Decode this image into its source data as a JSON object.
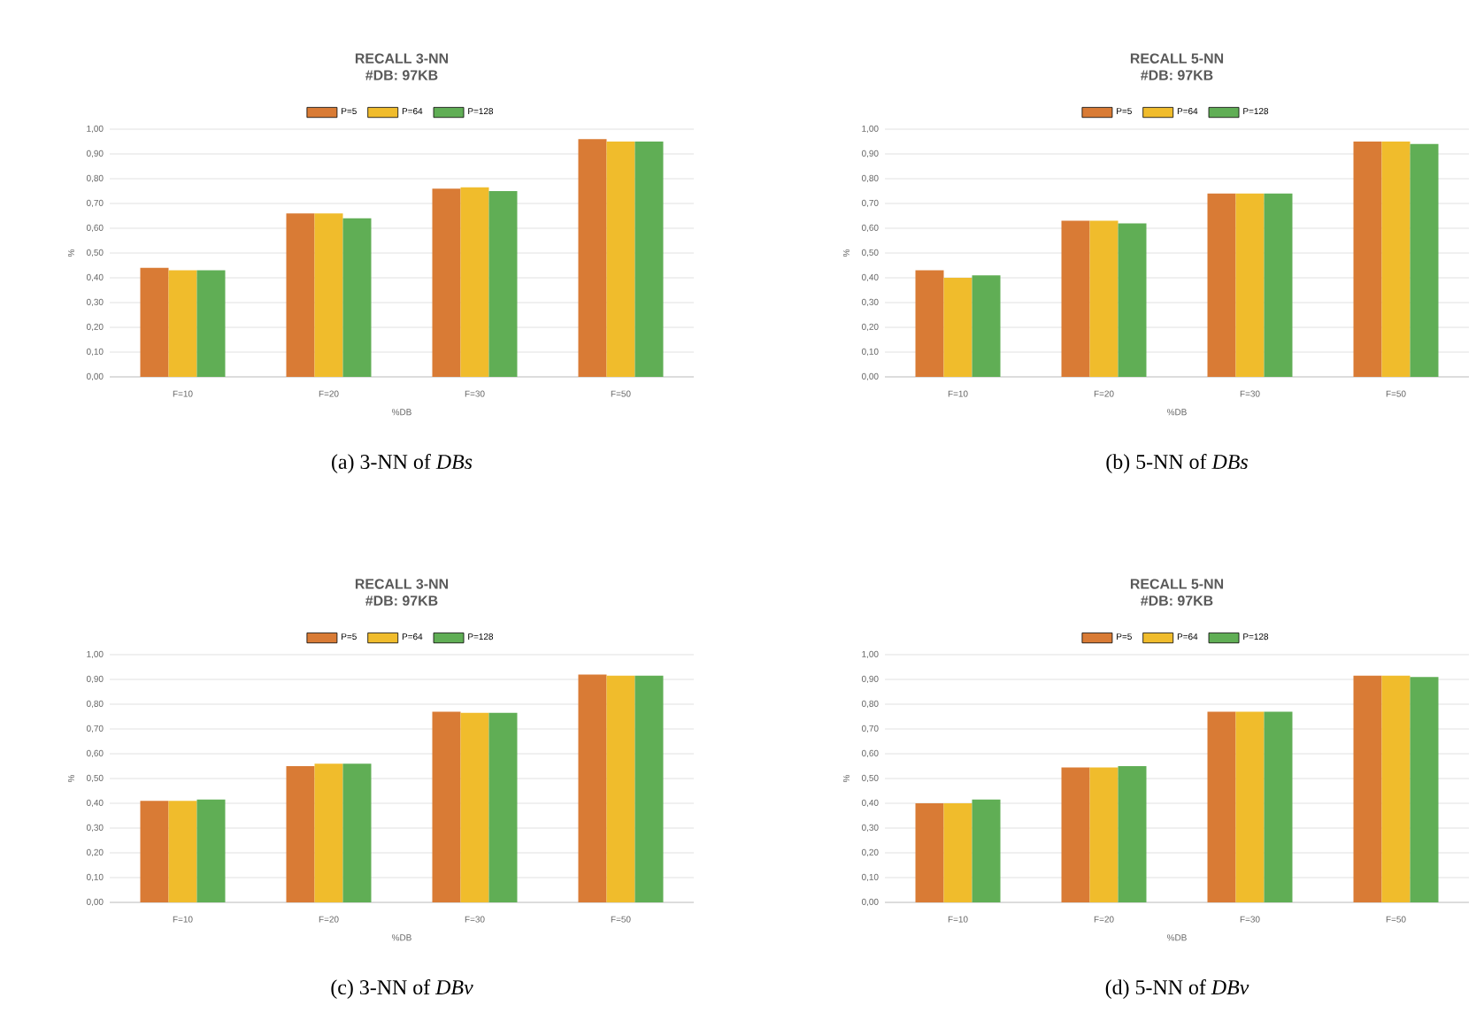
{
  "chart_data": [
    {
      "type": "bar",
      "title": "RECALL 3-NN",
      "subtitle": "#DB: 97KB",
      "xlabel": "%DB",
      "ylabel": "%",
      "categories": [
        "F=10",
        "F=20",
        "F=30",
        "F=50"
      ],
      "series": [
        {
          "name": "P=5",
          "color": "#d97b35",
          "values": [
            0.44,
            0.66,
            0.76,
            0.96
          ]
        },
        {
          "name": "P=64",
          "color": "#f0bc2c",
          "values": [
            0.43,
            0.66,
            0.765,
            0.95
          ]
        },
        {
          "name": "P=128",
          "color": "#60ae55",
          "values": [
            0.43,
            0.64,
            0.75,
            0.95
          ]
        }
      ],
      "ylim": [
        0,
        1
      ],
      "yticks": [
        {
          "value": 0,
          "label": "0,00"
        },
        {
          "value": 0.1,
          "label": "0,10"
        },
        {
          "value": 0.2,
          "label": "0,20"
        },
        {
          "value": 0.3,
          "label": "0,30"
        },
        {
          "value": 0.4,
          "label": "0,40"
        },
        {
          "value": 0.5,
          "label": "0,50"
        },
        {
          "value": 0.6,
          "label": "0,60"
        },
        {
          "value": 0.7,
          "label": "0,70"
        },
        {
          "value": 0.8,
          "label": "0,80"
        },
        {
          "value": 0.9,
          "label": "0,90"
        },
        {
          "value": 1,
          "label": "1,00"
        }
      ],
      "grid": "y",
      "legend": "top",
      "annotations": [
        "(a) 3-NN of *DBs*"
      ]
    },
    {
      "type": "bar",
      "title": "RECALL 5-NN",
      "subtitle": "#DB: 97KB",
      "xlabel": "%DB",
      "ylabel": "%",
      "categories": [
        "F=10",
        "F=20",
        "F=30",
        "F=50"
      ],
      "series": [
        {
          "name": "P=5",
          "color": "#d97b35",
          "values": [
            0.43,
            0.63,
            0.74,
            0.95
          ]
        },
        {
          "name": "P=64",
          "color": "#f0bc2c",
          "values": [
            0.4,
            0.63,
            0.74,
            0.95
          ]
        },
        {
          "name": "P=128",
          "color": "#60ae55",
          "values": [
            0.41,
            0.62,
            0.74,
            0.94
          ]
        }
      ],
      "ylim": [
        0,
        1
      ],
      "yticks": [
        {
          "value": 0,
          "label": "0,00"
        },
        {
          "value": 0.1,
          "label": "0,10"
        },
        {
          "value": 0.2,
          "label": "0,20"
        },
        {
          "value": 0.3,
          "label": "0,30"
        },
        {
          "value": 0.4,
          "label": "0,40"
        },
        {
          "value": 0.5,
          "label": "0,50"
        },
        {
          "value": 0.6,
          "label": "0,60"
        },
        {
          "value": 0.7,
          "label": "0,70"
        },
        {
          "value": 0.8,
          "label": "0,80"
        },
        {
          "value": 0.9,
          "label": "0,90"
        },
        {
          "value": 1,
          "label": "1,00"
        }
      ],
      "grid": "y",
      "legend": "top",
      "annotations": [
        "(b) 5-NN of *DBs*"
      ]
    },
    {
      "type": "bar",
      "title": "RECALL 3-NN",
      "subtitle": "#DB: 97KB",
      "xlabel": "%DB",
      "ylabel": "%",
      "categories": [
        "F=10",
        "F=20",
        "F=30",
        "F=50"
      ],
      "series": [
        {
          "name": "P=5",
          "color": "#d97b35",
          "values": [
            0.41,
            0.55,
            0.77,
            0.92
          ]
        },
        {
          "name": "P=64",
          "color": "#f0bc2c",
          "values": [
            0.41,
            0.56,
            0.765,
            0.915
          ]
        },
        {
          "name": "P=128",
          "color": "#60ae55",
          "values": [
            0.415,
            0.56,
            0.765,
            0.915
          ]
        }
      ],
      "ylim": [
        0,
        1
      ],
      "yticks": [
        {
          "value": 0,
          "label": "0,00"
        },
        {
          "value": 0.1,
          "label": "0,10"
        },
        {
          "value": 0.2,
          "label": "0,20"
        },
        {
          "value": 0.3,
          "label": "0,30"
        },
        {
          "value": 0.4,
          "label": "0,40"
        },
        {
          "value": 0.5,
          "label": "0,50"
        },
        {
          "value": 0.6,
          "label": "0,60"
        },
        {
          "value": 0.7,
          "label": "0,70"
        },
        {
          "value": 0.8,
          "label": "0,80"
        },
        {
          "value": 0.9,
          "label": "0,90"
        },
        {
          "value": 1,
          "label": "1,00"
        }
      ],
      "grid": "y",
      "legend": "top",
      "annotations": [
        "(c) 3-NN of *DBv*"
      ]
    },
    {
      "type": "bar",
      "title": "RECALL 5-NN",
      "subtitle": "#DB: 97KB",
      "xlabel": "%DB",
      "ylabel": "%",
      "categories": [
        "F=10",
        "F=20",
        "F=30",
        "F=50"
      ],
      "series": [
        {
          "name": "P=5",
          "color": "#d97b35",
          "values": [
            0.4,
            0.545,
            0.77,
            0.915
          ]
        },
        {
          "name": "P=64",
          "color": "#f0bc2c",
          "values": [
            0.4,
            0.545,
            0.77,
            0.915
          ]
        },
        {
          "name": "P=128",
          "color": "#60ae55",
          "values": [
            0.415,
            0.55,
            0.77,
            0.91
          ]
        }
      ],
      "ylim": [
        0,
        1
      ],
      "yticks": [
        {
          "value": 0,
          "label": "0,00"
        },
        {
          "value": 0.1,
          "label": "0,10"
        },
        {
          "value": 0.2,
          "label": "0,20"
        },
        {
          "value": 0.3,
          "label": "0,30"
        },
        {
          "value": 0.4,
          "label": "0,40"
        },
        {
          "value": 0.5,
          "label": "0,50"
        },
        {
          "value": 0.6,
          "label": "0,60"
        },
        {
          "value": 0.7,
          "label": "0,70"
        },
        {
          "value": 0.8,
          "label": "0,80"
        },
        {
          "value": 0.9,
          "label": "0,90"
        },
        {
          "value": 1,
          "label": "1,00"
        }
      ],
      "grid": "y",
      "legend": "top",
      "annotations": [
        "(d) 5-NN of *DBv*"
      ]
    }
  ]
}
